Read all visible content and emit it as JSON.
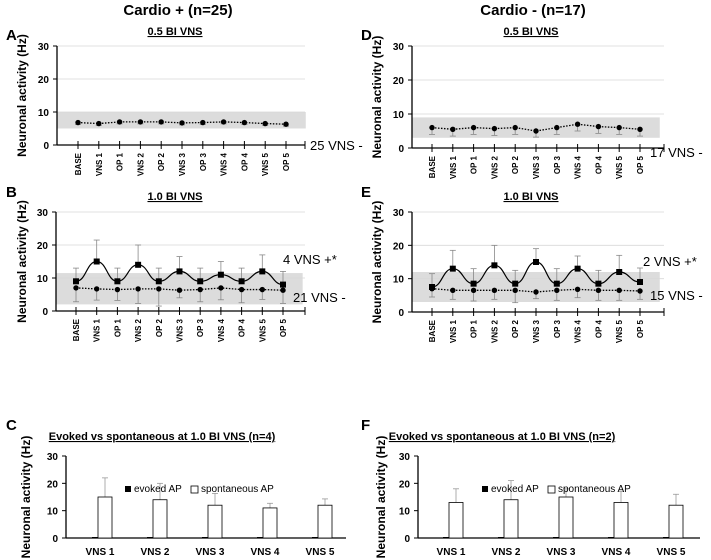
{
  "headers": {
    "left": "Cardio + (n=25)",
    "right": "Cardio - (n=17)"
  },
  "chart_data": [
    {
      "id": "A",
      "type": "line",
      "title": "0.5 BI VNS",
      "ylabel": "Neuronal activity (Hz)",
      "ylim": [
        0,
        30
      ],
      "yticks": [
        "0",
        "10",
        "20",
        "30"
      ],
      "categories": [
        "BASE",
        "VNS 1",
        "OP 1",
        "VNS 2",
        "OP 2",
        "VNS 3",
        "OP 3",
        "VNS 4",
        "OP 4",
        "VNS 5",
        "OP 5"
      ],
      "band": [
        5,
        10
      ],
      "series": [
        {
          "name": "25 VNS -",
          "style": "dotted",
          "marker": "circle",
          "values": [
            6.8,
            6.5,
            7,
            7,
            7,
            6.7,
            6.8,
            7,
            6.8,
            6.5,
            6.3
          ],
          "err_low": [
            6.2,
            5.9,
            6.4,
            6.4,
            6.4,
            6.1,
            6.2,
            6.4,
            6.2,
            5.9,
            5.7
          ]
        }
      ]
    },
    {
      "id": "B",
      "type": "line",
      "title": "1.0 BI VNS",
      "ylabel": "Neuronal activity (Hz)",
      "ylim": [
        0,
        30
      ],
      "yticks": [
        "0",
        "10",
        "20",
        "30"
      ],
      "categories": [
        "BASE",
        "VNS 1",
        "OP 1",
        "VNS 2",
        "OP 2",
        "VNS 3",
        "OP 3",
        "VNS 4",
        "OP 4",
        "VNS 5",
        "OP 5"
      ],
      "band": [
        2,
        11.5
      ],
      "series": [
        {
          "name": "4 VNS +*",
          "style": "solid",
          "marker": "square",
          "values": [
            9,
            15,
            9,
            14,
            9,
            12,
            9,
            11,
            9,
            12,
            8
          ],
          "err_high": [
            13,
            21.5,
            13,
            20,
            13,
            16.5,
            13,
            15,
            13,
            17,
            12
          ]
        },
        {
          "name": "21 VNS -",
          "style": "dotted",
          "marker": "circle",
          "values": [
            7,
            6.7,
            6.5,
            6.7,
            6.7,
            6.3,
            6.5,
            7,
            6.5,
            6.5,
            6.3
          ],
          "err_low": [
            2.8,
            3.3,
            3.2,
            2.3,
            1.5,
            4,
            2.8,
            3.4,
            2.5,
            3.5,
            2.3
          ]
        }
      ]
    },
    {
      "id": "C",
      "type": "bar",
      "title": "Evoked vs spontaneous at 1.0 BI VNS (n=4)",
      "ylabel": "Neuronal activity (Hz)",
      "ylim": [
        0,
        30
      ],
      "yticks": [
        "0",
        "10",
        "20",
        "30"
      ],
      "categories": [
        "VNS 1",
        "VNS 2",
        "VNS 3",
        "VNS 4",
        "VNS 5"
      ],
      "series": [
        {
          "name": "evoked AP",
          "values": [
            0,
            0,
            0,
            0,
            0
          ]
        },
        {
          "name": "spontaneous AP",
          "values": [
            15,
            14,
            12,
            11,
            12
          ],
          "err_high": [
            22,
            20,
            16.3,
            12.7,
            14.3
          ]
        }
      ]
    },
    {
      "id": "D",
      "type": "line",
      "title": "0.5 BI VNS",
      "ylabel": "Neuronal activity (Hz)",
      "ylim": [
        0,
        30
      ],
      "yticks": [
        "0",
        "10",
        "20",
        "30"
      ],
      "categories": [
        "BASE",
        "VNS 1",
        "OP 1",
        "VNS 2",
        "OP 2",
        "VNS 3",
        "OP 3",
        "VNS 4",
        "OP 4",
        "VNS 5",
        "OP 5"
      ],
      "band": [
        3,
        9
      ],
      "series": [
        {
          "name": "17 VNS -",
          "style": "dotted",
          "marker": "circle",
          "values": [
            6,
            5.5,
            6,
            5.7,
            6,
            5,
            6,
            7,
            6.3,
            6,
            5.5
          ],
          "err_low": [
            4,
            3.5,
            4,
            3.7,
            4,
            3.2,
            4,
            5,
            4.3,
            4,
            3.5
          ]
        }
      ]
    },
    {
      "id": "E",
      "type": "line",
      "title": "1.0 BI VNS",
      "ylabel": "Neuronal activity (Hz)",
      "ylim": [
        0,
        30
      ],
      "yticks": [
        "0",
        "10",
        "20",
        "30"
      ],
      "categories": [
        "BASE",
        "VNS 1",
        "OP 1",
        "VNS 2",
        "OP 2",
        "VNS 3",
        "OP 3",
        "VNS 4",
        "OP 4",
        "VNS 5",
        "OP 5"
      ],
      "band": [
        3,
        12
      ],
      "series": [
        {
          "name": "2 VNS +*",
          "style": "solid",
          "marker": "square",
          "values": [
            7.5,
            13,
            8.5,
            14,
            8.5,
            15,
            8.5,
            13,
            8.5,
            12,
            9
          ],
          "err_high": [
            11.5,
            18.5,
            13,
            20,
            12.5,
            19,
            13,
            16.8,
            12.5,
            17,
            13.2
          ]
        },
        {
          "name": "15 VNS -",
          "style": "dotted",
          "marker": "circle",
          "values": [
            7,
            6.5,
            6.5,
            6.5,
            6.5,
            6,
            6.5,
            6.8,
            6.5,
            6.5,
            6.3
          ],
          "err_low": [
            4.5,
            3.8,
            3.3,
            3.8,
            2.8,
            4,
            3.5,
            4.3,
            3.5,
            3.5,
            3.8
          ]
        }
      ]
    },
    {
      "id": "F",
      "type": "bar",
      "title": "Evoked vs spontaneous at 1.0 BI VNS (n=2)",
      "ylabel": "Neuronal activity (Hz)",
      "ylim": [
        0,
        30
      ],
      "yticks": [
        "0",
        "10",
        "20",
        "30"
      ],
      "categories": [
        "VNS 1",
        "VNS 2",
        "VNS 3",
        "VNS 4",
        "VNS 5"
      ],
      "series": [
        {
          "name": "evoked AP",
          "values": [
            0,
            0,
            0,
            0,
            0
          ]
        },
        {
          "name": "spontaneous AP",
          "values": [
            13,
            14,
            15,
            13,
            12
          ],
          "err_high": [
            18,
            21,
            18,
            17,
            16
          ]
        }
      ]
    }
  ]
}
